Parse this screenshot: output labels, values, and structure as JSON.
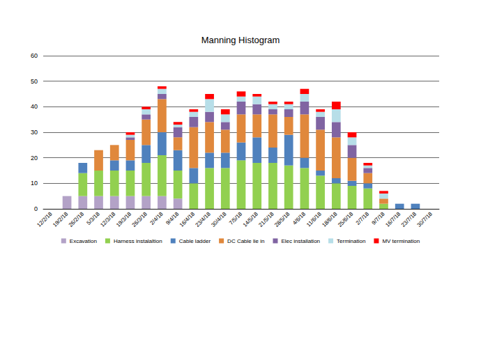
{
  "chart_data": {
    "type": "bar",
    "title": "Manning Histogram",
    "stacked": true,
    "grid": true,
    "legend": "bottom",
    "categories": [
      "12/2/18",
      "19/2/18",
      "26/2/18",
      "5/3/18",
      "12/3/18",
      "19/3/18",
      "26/3/18",
      "2/4/18",
      "9/4/18",
      "16/4/18",
      "23/4/18",
      "30/4/18",
      "7/5/18",
      "14/5/18",
      "21/5/18",
      "28/5/18",
      "4/6/18",
      "11/6/18",
      "18/6/18",
      "25/6/18",
      "2/7/18",
      "9/7/18",
      "16/7/18",
      "23/7/18",
      "30/7/18"
    ],
    "ylim": [
      0,
      60
    ],
    "yticks": [
      0,
      10,
      20,
      30,
      40,
      50,
      60
    ],
    "series": [
      {
        "name": "Excavation",
        "color": "#b3a2c7",
        "values": [
          0,
          5,
          5,
          5,
          5,
          5,
          5,
          5,
          4,
          0,
          0,
          0,
          0,
          0,
          0,
          0,
          0,
          0,
          0,
          0,
          0,
          0,
          0,
          0,
          0
        ]
      },
      {
        "name": "Harness instalaltion",
        "color": "#92d050",
        "values": [
          0,
          0,
          9,
          10,
          10,
          10,
          13,
          16,
          11,
          10,
          16,
          16,
          19,
          18,
          18,
          17,
          16,
          13,
          10,
          9,
          8,
          2,
          0,
          0,
          0
        ]
      },
      {
        "name": "Cable ladder",
        "color": "#4f81bd",
        "values": [
          0,
          0,
          4,
          0,
          4,
          4,
          7,
          9,
          8,
          6,
          6,
          6,
          7,
          10,
          6,
          12,
          4,
          2,
          2,
          2,
          2,
          0,
          2,
          2,
          0
        ]
      },
      {
        "name": "DC Cable lie in",
        "color": "#e0883c",
        "values": [
          0,
          0,
          0,
          8,
          6,
          8,
          10,
          13,
          5,
          16,
          12,
          9,
          11,
          9,
          13,
          7,
          17,
          16,
          16,
          9,
          4,
          2,
          0,
          0,
          0
        ]
      },
      {
        "name": "Elec installation",
        "color": "#8064a2",
        "values": [
          0,
          0,
          0,
          0,
          0,
          1,
          2,
          2,
          4,
          4,
          4,
          3,
          5,
          4,
          2,
          3,
          5,
          5,
          6,
          5,
          2,
          0,
          0,
          0,
          0
        ]
      },
      {
        "name": "Termination",
        "color": "#b7dee8",
        "values": [
          0,
          0,
          0,
          0,
          0,
          1,
          2,
          2,
          1,
          2,
          5,
          3,
          2,
          3,
          2,
          2,
          3,
          2,
          5,
          3,
          1,
          2,
          0,
          0,
          0
        ]
      },
      {
        "name": "MV termination",
        "color": "#ff0000",
        "values": [
          0,
          0,
          0,
          0,
          0,
          1,
          1,
          1,
          1,
          1,
          2,
          2,
          2,
          1,
          1,
          1,
          2,
          1,
          3,
          2,
          1,
          1,
          0,
          0,
          0
        ]
      }
    ]
  }
}
